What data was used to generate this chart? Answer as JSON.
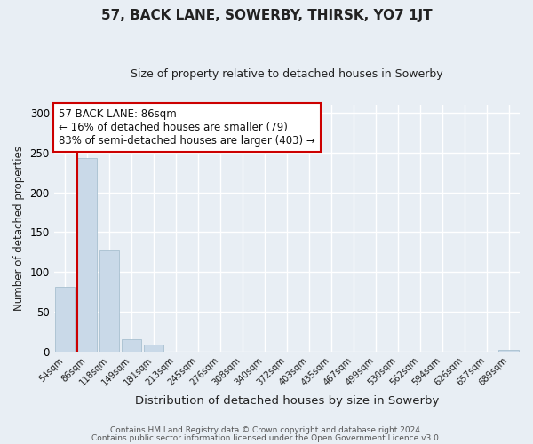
{
  "title": "57, BACK LANE, SOWERBY, THIRSK, YO7 1JT",
  "subtitle": "Size of property relative to detached houses in Sowerby",
  "xlabel": "Distribution of detached houses by size in Sowerby",
  "ylabel": "Number of detached properties",
  "footnote1": "Contains HM Land Registry data © Crown copyright and database right 2024.",
  "footnote2": "Contains public sector information licensed under the Open Government Licence v3.0.",
  "bar_labels": [
    "54sqm",
    "86sqm",
    "118sqm",
    "149sqm",
    "181sqm",
    "213sqm",
    "245sqm",
    "276sqm",
    "308sqm",
    "340sqm",
    "372sqm",
    "403sqm",
    "435sqm",
    "467sqm",
    "499sqm",
    "530sqm",
    "562sqm",
    "594sqm",
    "626sqm",
    "657sqm",
    "689sqm"
  ],
  "bar_values": [
    81,
    243,
    127,
    15,
    9,
    0,
    0,
    0,
    0,
    0,
    0,
    0,
    0,
    0,
    0,
    0,
    0,
    0,
    0,
    0,
    2
  ],
  "bar_color": "#c9d9e8",
  "bar_edgecolor": "#a8c0d0",
  "highlight_line_color": "#cc0000",
  "annotation_title": "57 BACK LANE: 86sqm",
  "annotation_line1": "← 16% of detached houses are smaller (79)",
  "annotation_line2": "83% of semi-detached houses are larger (403) →",
  "annotation_box_edgecolor": "#cc0000",
  "ylim": [
    0,
    310
  ],
  "yticks": [
    0,
    50,
    100,
    150,
    200,
    250,
    300
  ],
  "background_color": "#e8eef4",
  "grid_color": "#ffffff",
  "title_color": "#222222",
  "axis_text_color": "#222222",
  "footnote_color": "#555555"
}
